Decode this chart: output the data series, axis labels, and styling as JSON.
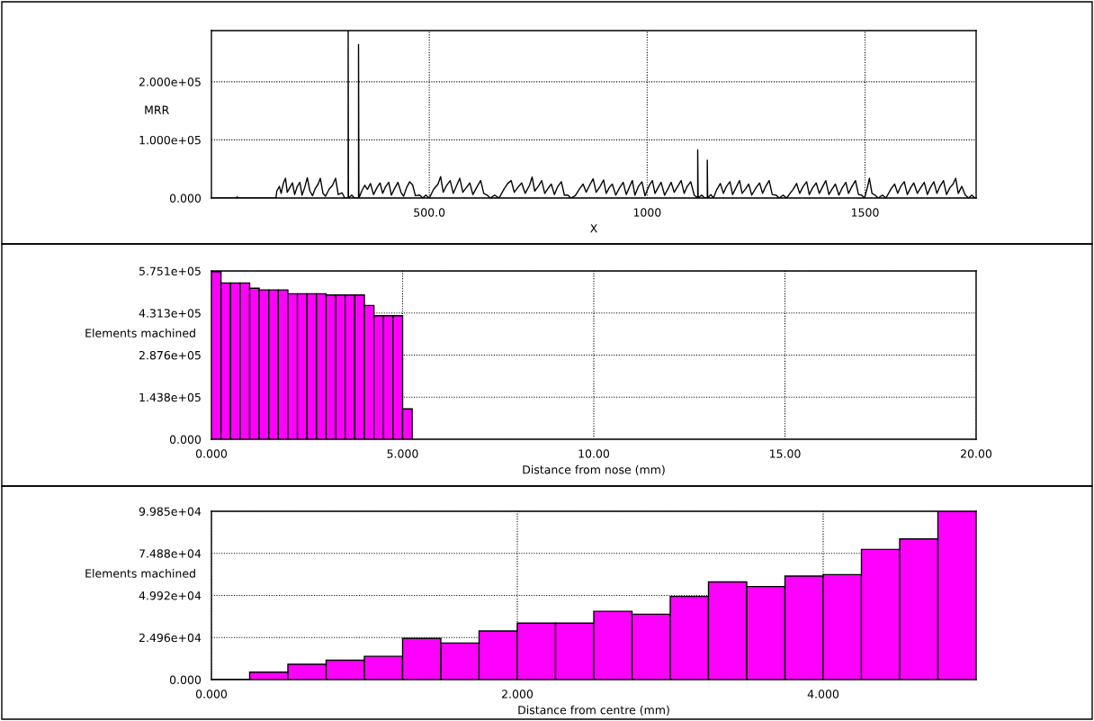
{
  "chart_data": [
    {
      "type": "line",
      "xlabel": "X",
      "ylabel": "MRR",
      "color": "#000000",
      "grid": true,
      "xlim": [
        0,
        1755
      ],
      "ylim": [
        0,
        288000
      ],
      "xticks": [
        {
          "value": 500,
          "label": "500.0"
        },
        1000,
        1500
      ],
      "yticks": [
        {
          "value": 0,
          "label": "0.000"
        },
        {
          "value": 100000,
          "label": "1.000e+05"
        },
        {
          "value": 200000,
          "label": "2.000e+05"
        }
      ],
      "x": [
        0,
        57,
        59,
        61,
        148,
        150,
        156,
        160,
        165,
        170,
        174,
        180,
        186,
        191,
        197,
        203,
        208,
        214,
        220,
        226,
        232,
        238,
        245,
        250,
        256,
        262,
        270,
        278,
        285,
        291,
        300,
        306,
        313.8,
        313.8,
        314.5,
        322,
        328,
        337.6,
        337.6,
        338.5,
        345,
        352,
        358,
        365,
        372,
        380,
        387,
        393,
        400,
        407,
        413,
        420,
        428,
        435,
        441,
        448,
        455,
        462,
        468,
        478,
        485,
        492,
        500,
        510,
        520,
        526,
        532,
        540,
        548,
        555,
        562,
        570,
        577,
        585,
        593,
        600,
        610,
        618,
        625,
        633,
        640,
        650,
        660,
        672,
        680,
        688,
        695,
        703,
        712,
        720,
        730,
        736,
        742,
        750,
        758,
        765,
        772,
        780,
        787,
        795,
        803,
        810,
        818,
        825,
        835,
        845,
        853,
        860,
        868,
        876,
        883,
        892,
        900,
        906,
        913,
        920,
        928,
        937,
        945,
        952,
        960,
        966,
        972,
        980,
        988,
        995,
        1005,
        1012,
        1018,
        1025,
        1032,
        1040,
        1048,
        1055,
        1062,
        1070,
        1078,
        1085,
        1092,
        1100,
        1108,
        1116,
        1116,
        1117,
        1125,
        1132,
        1138,
        1138,
        1139,
        1146,
        1152,
        1160,
        1168,
        1175,
        1182,
        1190,
        1196,
        1204,
        1212,
        1218,
        1226,
        1233,
        1240,
        1250,
        1258,
        1265,
        1272,
        1280,
        1287,
        1296,
        1303,
        1312,
        1320,
        1335,
        1343,
        1350,
        1358,
        1366,
        1372,
        1380,
        1388,
        1395,
        1403,
        1410,
        1417,
        1425,
        1432,
        1440,
        1448,
        1456,
        1462,
        1470,
        1478,
        1485,
        1492,
        1499,
        1506,
        1510,
        1516,
        1523,
        1530,
        1540,
        1548,
        1560,
        1568,
        1575,
        1582,
        1590,
        1597,
        1605,
        1612,
        1620,
        1628,
        1636,
        1643,
        1650,
        1658,
        1665,
        1672,
        1680,
        1687,
        1695,
        1702,
        1708,
        1714,
        1722,
        1730,
        1738,
        1745,
        1752
      ],
      "values": [
        0,
        0,
        2000,
        0,
        0,
        12000,
        20000,
        8000,
        25000,
        34000,
        10000,
        18000,
        26000,
        6000,
        20000,
        27000,
        5000,
        18000,
        35000,
        12000,
        4000,
        16000,
        24000,
        34000,
        8000,
        3000,
        15000,
        22000,
        34000,
        6000,
        9000,
        0,
        0,
        288000,
        0,
        5000,
        0,
        0,
        264000,
        0,
        12000,
        22000,
        15000,
        25000,
        6000,
        18000,
        26000,
        8000,
        20000,
        27000,
        5000,
        16000,
        27000,
        10000,
        3000,
        18000,
        28000,
        22000,
        4000,
        5000,
        0,
        5000,
        0,
        15000,
        24000,
        37000,
        10000,
        22000,
        30000,
        8000,
        20000,
        34000,
        10000,
        18000,
        26000,
        6000,
        20000,
        30000,
        8000,
        5000,
        0,
        5000,
        0,
        16000,
        25000,
        30000,
        10000,
        18000,
        26000,
        8000,
        22000,
        36000,
        12000,
        20000,
        30000,
        8000,
        16000,
        24000,
        6000,
        20000,
        28000,
        5000,
        5000,
        0,
        4000,
        16000,
        24000,
        10000,
        22000,
        33000,
        10000,
        20000,
        31000,
        8000,
        18000,
        24000,
        5000,
        18000,
        27000,
        6000,
        20000,
        30000,
        5000,
        20000,
        28000,
        4000,
        22000,
        30000,
        8000,
        18000,
        27000,
        5000,
        16000,
        27000,
        10000,
        20000,
        30000,
        8000,
        20000,
        28000,
        5000,
        0,
        83000,
        0,
        5000,
        0,
        0,
        65000,
        0,
        6000,
        0,
        15000,
        25000,
        8000,
        20000,
        28000,
        6000,
        18000,
        30000,
        8000,
        16000,
        24000,
        5000,
        18000,
        26000,
        8000,
        20000,
        30000,
        6000,
        5000,
        0,
        5000,
        0,
        15000,
        25000,
        8000,
        20000,
        28000,
        6000,
        18000,
        26000,
        8000,
        20000,
        30000,
        6000,
        16000,
        24000,
        5000,
        18000,
        27000,
        8000,
        20000,
        30000,
        6000,
        5000,
        0,
        20000,
        34000,
        8000,
        5000,
        0,
        5000,
        0,
        16000,
        24000,
        8000,
        20000,
        28000,
        6000,
        18000,
        26000,
        8000,
        18000,
        27000,
        6000,
        18000,
        28000,
        8000,
        20000,
        30000,
        6000,
        18000,
        24000,
        34000,
        8000,
        20000,
        5000,
        0,
        5000,
        0
      ]
    },
    {
      "type": "histogram",
      "xlabel": "Distance from nose (mm)",
      "ylabel": "Elements machined",
      "color": "#ff00ff",
      "grid": true,
      "xlim": [
        0,
        20
      ],
      "ylim": [
        0,
        575100
      ],
      "xticks": [
        {
          "value": 0,
          "label": "0.000"
        },
        {
          "value": 5,
          "label": "5.000"
        },
        {
          "value": 10,
          "label": "10.00"
        },
        {
          "value": 15,
          "label": "15.00"
        },
        {
          "value": 20,
          "label": "20.00"
        }
      ],
      "yticks": [
        {
          "value": 0,
          "label": "0.000"
        },
        {
          "value": 143800,
          "label": "1.438e+05"
        },
        {
          "value": 287600,
          "label": "2.876e+05"
        },
        {
          "value": 431300,
          "label": "4.313e+05"
        },
        {
          "value": 575100,
          "label": "5.751e+05"
        }
      ],
      "bins": [
        0,
        0.25,
        0.5,
        0.75,
        1,
        1.25,
        1.5,
        1.75,
        2,
        2.25,
        2.5,
        2.75,
        3,
        3.25,
        3.5,
        3.75,
        4,
        4.25,
        4.5,
        4.75,
        5,
        5.25
      ],
      "values": [
        573000,
        534000,
        534000,
        534000,
        516000,
        510000,
        510000,
        510000,
        497000,
        497000,
        497000,
        497000,
        493000,
        493000,
        493000,
        493000,
        457000,
        422000,
        422000,
        422000,
        104000
      ]
    },
    {
      "type": "histogram",
      "xlabel": "Distance from centre (mm)",
      "ylabel": "Elements machined",
      "color": "#ff00ff",
      "grid": true,
      "xlim": [
        0,
        5
      ],
      "ylim": [
        0,
        99850
      ],
      "xticks": [
        {
          "value": 0,
          "label": "0.000"
        },
        {
          "value": 2,
          "label": "2.000"
        },
        {
          "value": 4,
          "label": "4.000"
        }
      ],
      "yticks": [
        {
          "value": 0,
          "label": "0.000"
        },
        {
          "value": 24960,
          "label": "2.496e+04"
        },
        {
          "value": 49920,
          "label": "4.992e+04"
        },
        {
          "value": 74880,
          "label": "7.488e+04"
        },
        {
          "value": 99850,
          "label": "9.985e+04"
        }
      ],
      "bins": [
        0,
        0.25,
        0.5,
        0.75,
        1,
        1.25,
        1.5,
        1.75,
        2,
        2.25,
        2.5,
        2.75,
        3,
        3.25,
        3.5,
        3.75,
        4,
        4.25,
        4.5,
        4.75,
        5
      ],
      "values": [
        0,
        4400,
        9100,
        11500,
        13800,
        24400,
        21700,
        28800,
        33500,
        33500,
        40500,
        38800,
        49300,
        57900,
        55200,
        61400,
        62300,
        77200,
        83400,
        99850
      ]
    }
  ]
}
